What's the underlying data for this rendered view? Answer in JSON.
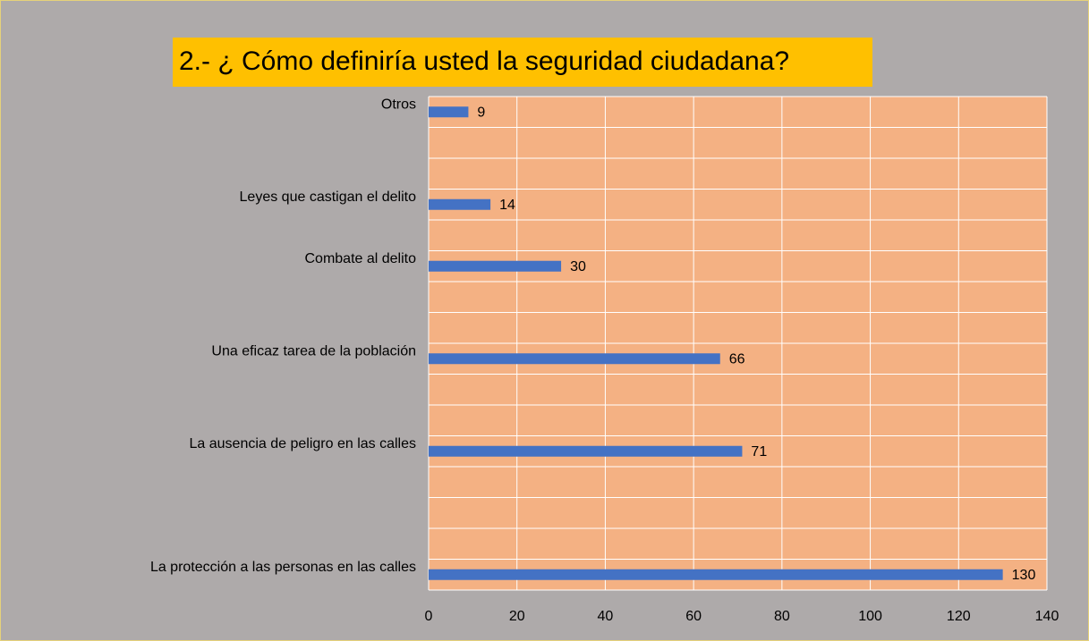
{
  "chart_data": {
    "type": "barh",
    "title": "2.- ¿ Cómo definiría usted la seguridad ciudadana?",
    "categories": [
      "Otros",
      null,
      null,
      "Leyes que castigan el delito",
      null,
      "Combate al delito",
      null,
      null,
      "Una eficaz tarea de la población",
      null,
      null,
      "La ausencia de peligro en las calles",
      null,
      null,
      null,
      "La protección a las personas en las calles"
    ],
    "values": [
      9,
      null,
      null,
      14,
      null,
      30,
      null,
      null,
      66,
      null,
      null,
      71,
      null,
      null,
      null,
      130
    ],
    "color": "#4472c4",
    "xlim": [
      0,
      140
    ],
    "xticks": [
      0,
      20,
      40,
      60,
      80,
      100,
      120,
      140
    ],
    "grid": true
  }
}
